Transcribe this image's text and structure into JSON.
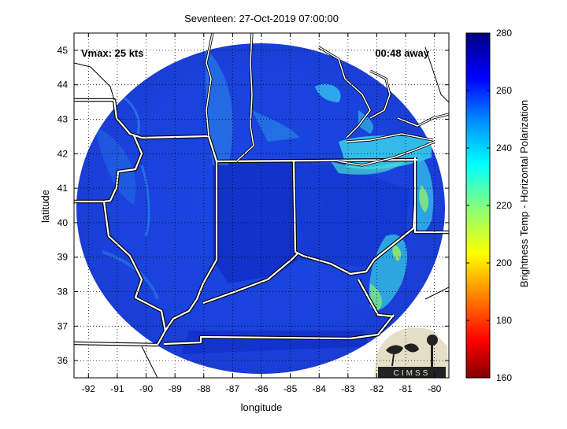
{
  "title": "Seventeen: 27-Oct-2019 07:00:00",
  "annotations": {
    "vmax": "Vmax: 25 kts",
    "time_offset": "00:48 away"
  },
  "axes": {
    "xlabel": "longitude",
    "ylabel": "latitude",
    "xlim": [
      -92.5,
      -79.5
    ],
    "ylim": [
      35.5,
      45.5
    ],
    "xticks": [
      "-92",
      "-91",
      "-90",
      "-89",
      "-88",
      "-87",
      "-86",
      "-85",
      "-84",
      "-83",
      "-82",
      "-81",
      "-80"
    ],
    "yticks": [
      "36",
      "37",
      "38",
      "39",
      "40",
      "41",
      "42",
      "43",
      "44",
      "45"
    ],
    "grid": "dotted"
  },
  "colorbar": {
    "label": "Brightness Temp - Horizontal Polarization",
    "range": [
      160,
      280
    ],
    "ticks": [
      "280",
      "260",
      "240",
      "220",
      "200",
      "180",
      "160"
    ],
    "colormap": "jet"
  },
  "logo": {
    "text": "CIMSS"
  },
  "colors": {
    "swath_base": "#1a44e0",
    "swath_dark": "#0a20b4",
    "swath_light": "#32a8ee",
    "border": "#ffffff",
    "coast": "#000000"
  }
}
